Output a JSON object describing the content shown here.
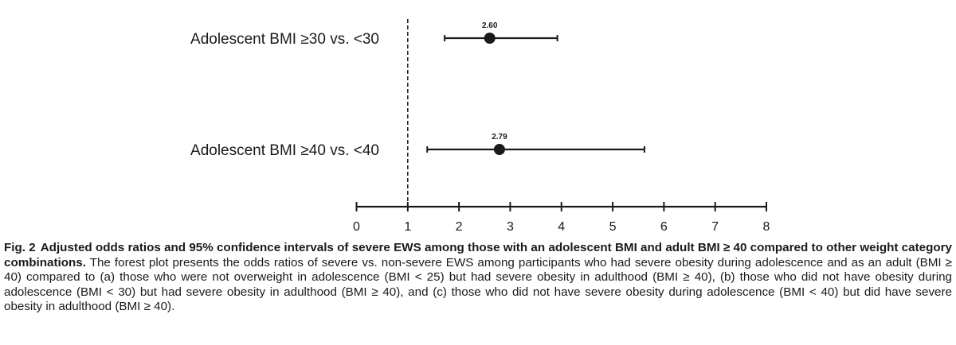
{
  "chart_data": {
    "type": "forest",
    "rows": [
      {
        "label": "Adolescent BMI ≥30 vs. <30",
        "or": 2.6,
        "ci_low": 1.72,
        "ci_high": 3.92,
        "value_label": "2.60"
      },
      {
        "label": "Adolescent BMI ≥40 vs. <40",
        "or": 2.79,
        "ci_low": 1.38,
        "ci_high": 5.62,
        "value_label": "2.79"
      }
    ],
    "xlim": [
      0,
      8
    ],
    "xticks": [
      "0",
      "1",
      "2",
      "3",
      "4",
      "5",
      "6",
      "7",
      "8"
    ],
    "reference_line": 1,
    "grid": false
  },
  "caption": {
    "fig_number": "Fig. 2",
    "title": "Adjusted odds ratios and 95% confidence intervals of severe EWS among those with an adolescent BMI and adult BMI ≥ 40 compared to other weight category combinations.",
    "body": " The forest plot presents the odds ratios of severe vs. non-severe EWS among participants who had severe obesity during adolescence and as an adult (BMI ≥ 40) compared to (a) those who were not overweight in adolescence (BMI < 25) but had severe obesity in adulthood (BMI ≥ 40), (b) those who did not have obesity during adolescence (BMI < 30) but had severe obesity in adulthood (BMI ≥ 40), and (c) those who did not have severe obesity during adolescence (BMI < 40) but did have severe obesity in adulthood (BMI ≥ 40)."
  },
  "colors": {
    "ink": "#1a1a1a",
    "background": "#ffffff"
  }
}
